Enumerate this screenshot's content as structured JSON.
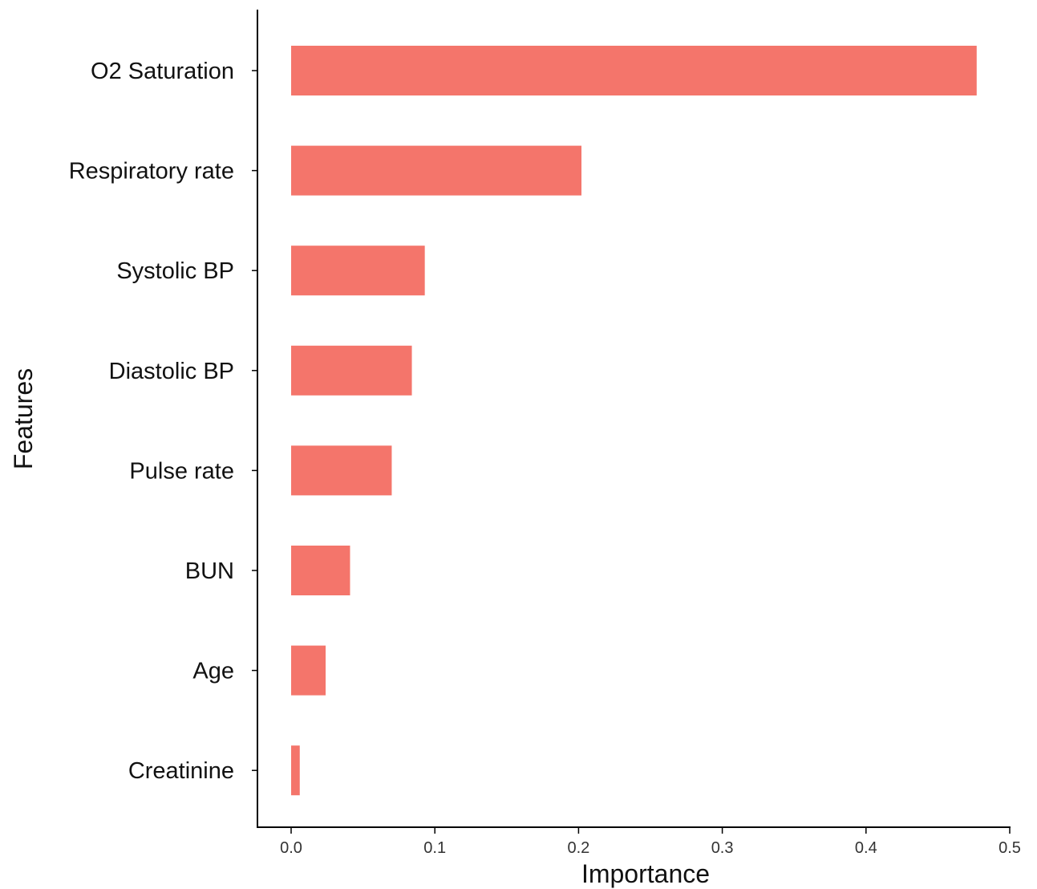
{
  "chart_data": {
    "type": "bar",
    "orientation": "horizontal",
    "title": "",
    "xlabel": "Importance",
    "ylabel": "Features",
    "categories": [
      "O2 Saturation",
      "Respiratory rate",
      "Systolic BP",
      "Diastolic BP",
      "Pulse rate",
      "BUN",
      "Age",
      "Creatinine"
    ],
    "values": [
      0.477,
      0.202,
      0.093,
      0.084,
      0.07,
      0.041,
      0.024,
      0.006
    ],
    "xlim": [
      0,
      0.5
    ],
    "xticks": [
      0.0,
      0.1,
      0.2,
      0.3,
      0.4,
      0.5
    ],
    "xtick_labels": [
      "0.0",
      "0.1",
      "0.2",
      "0.3",
      "0.4",
      "0.5"
    ],
    "bar_color": "#F4756B",
    "grid": false,
    "legend": "none"
  }
}
